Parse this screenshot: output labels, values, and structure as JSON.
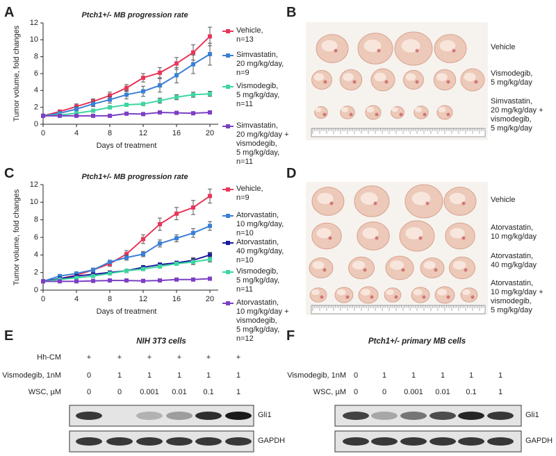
{
  "panel_labels": [
    "A",
    "B",
    "C",
    "D",
    "E",
    "F"
  ],
  "chart_data": [
    {
      "type": "line",
      "title": "Ptch1+/- MB progression rate",
      "x_label": "Days of treatment",
      "y_label": "Tumor volume, fold changes",
      "x": [
        0,
        2,
        4,
        6,
        8,
        10,
        12,
        14,
        16,
        18,
        20
      ],
      "xlim": [
        0,
        21
      ],
      "xticks": [
        0,
        4,
        8,
        12,
        16,
        20
      ],
      "ylim": [
        0,
        12
      ],
      "yticks": [
        0,
        2,
        4,
        6,
        8,
        10,
        12
      ],
      "series": [
        {
          "name": "Vehicle,\nn=13",
          "color": "#e8365a",
          "values": [
            1,
            1.5,
            2.1,
            2.7,
            3.4,
            4.3,
            5.5,
            6.1,
            7.2,
            8.5,
            10.4
          ],
          "errors": [
            0.1,
            0.2,
            0.3,
            0.3,
            0.4,
            0.4,
            0.5,
            0.6,
            0.7,
            0.9,
            1.1
          ]
        },
        {
          "name": "Simvastatin,\n20 mg/kg/day,\nn=9",
          "color": "#3a7fd5",
          "values": [
            1,
            1.3,
            1.8,
            2.4,
            2.9,
            3.5,
            3.9,
            4.6,
            5.8,
            7.1,
            8.3
          ],
          "errors": [
            0.1,
            0.2,
            0.3,
            0.3,
            0.4,
            0.5,
            0.6,
            0.8,
            0.9,
            1.1,
            1.3
          ]
        },
        {
          "name": "Vismodegib,\n5 mg/kg/day,\nn=11",
          "color": "#3dd6a0",
          "values": [
            1,
            1.1,
            1.3,
            1.6,
            2.0,
            2.3,
            2.4,
            2.8,
            3.2,
            3.5,
            3.6
          ],
          "errors": [
            0.1,
            0.1,
            0.1,
            0.2,
            0.2,
            0.2,
            0.2,
            0.3,
            0.3,
            0.3,
            0.3
          ]
        },
        {
          "name": "Simvastatin,\n20 mg/kg/day +\nvismodegib,\n5 mg/kg/day,\nn=11",
          "color": "#7b3fc4",
          "values": [
            1,
            1.0,
            1.0,
            1.0,
            1.0,
            1.25,
            1.2,
            1.4,
            1.35,
            1.3,
            1.4
          ],
          "errors": [
            0.05,
            0.05,
            0.05,
            0.05,
            0.05,
            0.1,
            0.1,
            0.1,
            0.1,
            0.1,
            0.1
          ]
        }
      ]
    },
    {
      "type": "line",
      "title": "Ptch1+/- MB progression rate",
      "x_label": "Days of treatment",
      "y_label": "Tumor volume, fold changes",
      "x": [
        0,
        2,
        4,
        6,
        8,
        10,
        12,
        14,
        16,
        18,
        20
      ],
      "xlim": [
        0,
        21
      ],
      "xticks": [
        0,
        4,
        8,
        12,
        16,
        20
      ],
      "ylim": [
        0,
        12
      ],
      "yticks": [
        0,
        2,
        4,
        6,
        8,
        10,
        12
      ],
      "series": [
        {
          "name": "Vehicle,\nn=9",
          "color": "#e8365a",
          "values": [
            1,
            1.3,
            1.7,
            2.3,
            3.0,
            4.1,
            5.8,
            7.5,
            8.7,
            9.4,
            10.7
          ],
          "errors": [
            0.1,
            0.1,
            0.2,
            0.2,
            0.3,
            0.4,
            0.5,
            0.7,
            0.7,
            0.8,
            0.8
          ]
        },
        {
          "name": "Atorvastatin,\n10 mg/kg/day,\nn=10",
          "color": "#3a7fd5",
          "values": [
            1,
            1.6,
            1.9,
            2.3,
            3.2,
            3.7,
            4.1,
            5.3,
            5.9,
            6.5,
            7.3
          ],
          "errors": [
            0.1,
            0.1,
            0.1,
            0.2,
            0.2,
            0.3,
            0.3,
            0.4,
            0.4,
            0.5,
            0.5
          ]
        },
        {
          "name": "Atorvastatin,\n40 mg/kg/day,\nn=10",
          "color": "#1a1aa0",
          "values": [
            1,
            1.3,
            1.6,
            1.8,
            2.0,
            2.2,
            2.6,
            2.9,
            3.1,
            3.4,
            4.0
          ],
          "errors": [
            0.1,
            0.1,
            0.1,
            0.1,
            0.1,
            0.2,
            0.2,
            0.2,
            0.2,
            0.3,
            0.3
          ]
        },
        {
          "name": "Vismodegib,\n5 mg/kg/day,\nn=11",
          "color": "#3dd6a0",
          "values": [
            1,
            1.2,
            1.4,
            1.6,
            1.9,
            2.2,
            2.4,
            2.7,
            3.0,
            3.2,
            3.5
          ],
          "errors": [
            0.1,
            0.1,
            0.1,
            0.1,
            0.1,
            0.2,
            0.2,
            0.2,
            0.2,
            0.3,
            0.3
          ]
        },
        {
          "name": "Atorvastatin,\n10 mg/kg/day +\nvismodegib,\n5 mg/kg/day,\nn=12",
          "color": "#7b3fc4",
          "values": [
            1,
            1.0,
            1.0,
            1.05,
            1.1,
            1.1,
            1.05,
            1.1,
            1.2,
            1.2,
            1.3
          ],
          "errors": [
            0.05,
            0.05,
            0.05,
            0.05,
            0.05,
            0.05,
            0.05,
            0.05,
            0.1,
            0.1,
            0.1
          ]
        }
      ]
    }
  ],
  "photos": [
    {
      "labels": [
        "Vehicle",
        "Vismodegib,\n5 mg/kg/day",
        "Simvastatin,\n20 mg/kg/day +\nvismodegib,\n5 mg/kg/day"
      ]
    },
    {
      "labels": [
        "Vehicle",
        "Atorvastatin,\n10 mg/kg/day",
        "Atorvastatin,\n40 mg/kg/day",
        "Atorvastatin,\n10 mg/kg/day +\nvismodegib,\n5 mg/kg/day"
      ]
    }
  ],
  "blots": [
    {
      "title": "NIH 3T3 cells",
      "rows": [
        {
          "label": "Hh-CM",
          "values": [
            "+",
            "+",
            "+",
            "+",
            "+",
            "+"
          ]
        },
        {
          "label": "Vismodegib, 1nM",
          "values": [
            "0",
            "1",
            "1",
            "1",
            "1",
            "1"
          ]
        },
        {
          "label": "WSC, µM",
          "values": [
            "0",
            "0",
            "0.001",
            "0.01",
            "0.1",
            "1"
          ]
        }
      ],
      "bands": [
        "Gli1",
        "GAPDH"
      ]
    },
    {
      "title": "Ptch1+/- primary MB cells",
      "rows": [
        {
          "label": "Vismodegib, 1nM",
          "values": [
            "0",
            "1",
            "1",
            "1",
            "1",
            "1"
          ]
        },
        {
          "label": "WSC, µM",
          "values": [
            "0",
            "0",
            "0.001",
            "0.01",
            "0.1",
            "1"
          ]
        }
      ],
      "bands": [
        "Gli1",
        "GAPDH"
      ]
    }
  ]
}
